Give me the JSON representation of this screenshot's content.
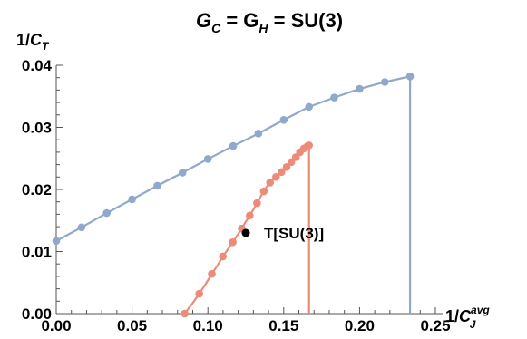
{
  "chart_data": {
    "type": "line",
    "title": {
      "prefix": "G",
      "sub1": "C",
      "mid": " = G",
      "sub2": "H",
      "suffix": " = SU(3)"
    },
    "ylabel": {
      "prefix": "1/",
      "var": "C",
      "sub": "T"
    },
    "xlabel": {
      "prefix": "1/",
      "var": "C",
      "sub": "J",
      "sup": "avg"
    },
    "xlim": [
      0,
      0.25
    ],
    "ylim": [
      0,
      0.04
    ],
    "xticks": [
      "0.00",
      "0.05",
      "0.10",
      "0.15",
      "0.20",
      "0.25"
    ],
    "yticks": [
      "0.00",
      "0.01",
      "0.02",
      "0.03",
      "0.04"
    ],
    "grid": false,
    "series": [
      {
        "color": "#8fa8cc",
        "x": [
          0.0,
          0.0167,
          0.0333,
          0.05,
          0.0667,
          0.0833,
          0.1,
          0.1167,
          0.1333,
          0.15,
          0.1667,
          0.1833,
          0.2,
          0.2167,
          0.2333
        ],
        "y": [
          0.0117,
          0.0139,
          0.0162,
          0.0184,
          0.0206,
          0.0227,
          0.0249,
          0.027,
          0.029,
          0.0312,
          0.0333,
          0.0348,
          0.0362,
          0.0373,
          0.0382
        ],
        "drop_to_axis": true
      },
      {
        "color": "#ec8c78",
        "x": [
          0.0847,
          0.0897,
          0.0943,
          0.0986,
          0.1026,
          0.1064,
          0.1099,
          0.1133,
          0.1164,
          0.1194,
          0.1223,
          0.125,
          0.1276,
          0.1301,
          0.1324,
          0.1347,
          0.1369,
          0.139,
          0.141,
          0.143,
          0.1449,
          0.1467,
          0.1485,
          0.1502,
          0.1519,
          0.1535,
          0.155,
          0.1565,
          0.158,
          0.1594,
          0.1607,
          0.1621,
          0.1633,
          0.1646,
          0.1658,
          0.1667
        ],
        "y": [
          0.0,
          0.0016,
          0.0032,
          0.0048,
          0.0064,
          0.0078,
          0.0092,
          0.0104,
          0.0115,
          0.0126,
          0.0137,
          0.0148,
          0.0158,
          0.0168,
          0.0178,
          0.0188,
          0.0197,
          0.0205,
          0.0211,
          0.0216,
          0.022,
          0.0224,
          0.0228,
          0.0232,
          0.0236,
          0.024,
          0.0244,
          0.0248,
          0.0252,
          0.0256,
          0.026,
          0.0263,
          0.0266,
          0.0268,
          0.027,
          0.0271
        ],
        "marker_every": 2,
        "drop_to_axis": true
      }
    ],
    "annotations": [
      {
        "x": 0.125,
        "y": 0.013,
        "label": "T[SU(3)]",
        "marker": "point",
        "color": "#000000"
      }
    ]
  }
}
